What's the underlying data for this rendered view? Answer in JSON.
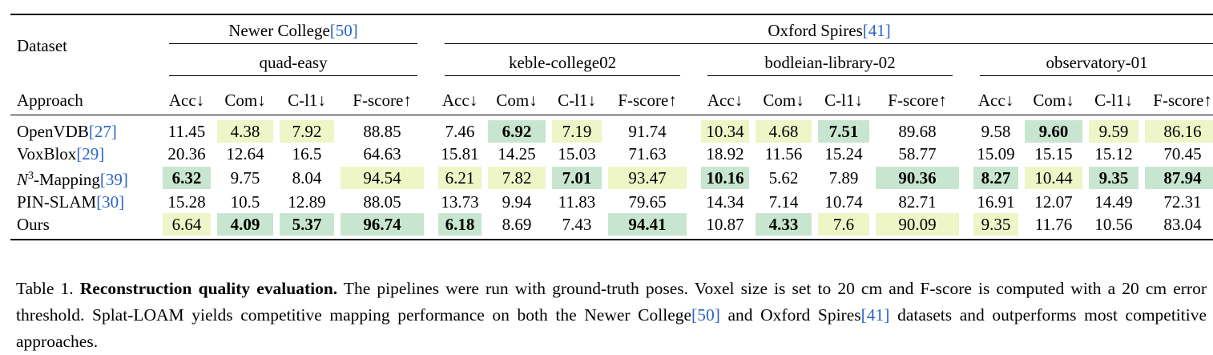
{
  "headers": {
    "dataset_label": "Dataset",
    "approach_label": "Approach",
    "groups": [
      {
        "name": "Newer College",
        "ref": "[50]"
      },
      {
        "name": "Oxford Spires",
        "ref": "[41]"
      }
    ],
    "sequences": [
      "quad-easy",
      "keble-college02",
      "bodleian-library-02",
      "observatory-01"
    ],
    "metrics": [
      "Acc↓",
      "Com↓",
      "C-l1↓",
      "F-score↑"
    ]
  },
  "rows": [
    {
      "name": "OpenVDB",
      "ref": "[27]",
      "cells": [
        {
          "v": "11.45",
          "h": ""
        },
        {
          "v": "4.38",
          "h": "third"
        },
        {
          "v": "7.92",
          "h": "third"
        },
        {
          "v": "88.85",
          "h": ""
        },
        {
          "v": "7.46",
          "h": ""
        },
        {
          "v": "6.92",
          "h": "best"
        },
        {
          "v": "7.19",
          "h": "third"
        },
        {
          "v": "91.74",
          "h": ""
        },
        {
          "v": "10.34",
          "h": "third"
        },
        {
          "v": "4.68",
          "h": "third"
        },
        {
          "v": "7.51",
          "h": "best"
        },
        {
          "v": "89.68",
          "h": ""
        },
        {
          "v": "9.58",
          "h": ""
        },
        {
          "v": "9.60",
          "h": "best"
        },
        {
          "v": "9.59",
          "h": "third"
        },
        {
          "v": "86.16",
          "h": "third"
        }
      ]
    },
    {
      "name": "VoxBlox",
      "ref": "[29]",
      "cells": [
        {
          "v": "20.36",
          "h": ""
        },
        {
          "v": "12.64",
          "h": ""
        },
        {
          "v": "16.5",
          "h": ""
        },
        {
          "v": "64.63",
          "h": ""
        },
        {
          "v": "15.81",
          "h": ""
        },
        {
          "v": "14.25",
          "h": ""
        },
        {
          "v": "15.03",
          "h": ""
        },
        {
          "v": "71.63",
          "h": ""
        },
        {
          "v": "18.92",
          "h": ""
        },
        {
          "v": "11.56",
          "h": ""
        },
        {
          "v": "15.24",
          "h": ""
        },
        {
          "v": "58.77",
          "h": ""
        },
        {
          "v": "15.09",
          "h": ""
        },
        {
          "v": "15.15",
          "h": ""
        },
        {
          "v": "15.12",
          "h": ""
        },
        {
          "v": "70.45",
          "h": ""
        }
      ]
    },
    {
      "name": "-Mapping",
      "prefix": "N",
      "sup": "3",
      "ref": "[39]",
      "cells": [
        {
          "v": "6.32",
          "h": "best"
        },
        {
          "v": "9.75",
          "h": ""
        },
        {
          "v": "8.04",
          "h": ""
        },
        {
          "v": "94.54",
          "h": "third"
        },
        {
          "v": "6.21",
          "h": "third"
        },
        {
          "v": "7.82",
          "h": "third"
        },
        {
          "v": "7.01",
          "h": "best"
        },
        {
          "v": "93.47",
          "h": "third"
        },
        {
          "v": "10.16",
          "h": "best"
        },
        {
          "v": "5.62",
          "h": ""
        },
        {
          "v": "7.89",
          "h": ""
        },
        {
          "v": "90.36",
          "h": "best"
        },
        {
          "v": "8.27",
          "h": "best"
        },
        {
          "v": "10.44",
          "h": "third"
        },
        {
          "v": "9.35",
          "h": "best"
        },
        {
          "v": "87.94",
          "h": "best"
        }
      ]
    },
    {
      "name": "PIN-SLAM",
      "ref": "[30]",
      "cells": [
        {
          "v": "15.28",
          "h": ""
        },
        {
          "v": "10.5",
          "h": ""
        },
        {
          "v": "12.89",
          "h": ""
        },
        {
          "v": "88.05",
          "h": ""
        },
        {
          "v": "13.73",
          "h": ""
        },
        {
          "v": "9.94",
          "h": ""
        },
        {
          "v": "11.83",
          "h": ""
        },
        {
          "v": "79.65",
          "h": ""
        },
        {
          "v": "14.34",
          "h": ""
        },
        {
          "v": "7.14",
          "h": ""
        },
        {
          "v": "10.74",
          "h": ""
        },
        {
          "v": "82.71",
          "h": ""
        },
        {
          "v": "16.91",
          "h": ""
        },
        {
          "v": "12.07",
          "h": ""
        },
        {
          "v": "14.49",
          "h": ""
        },
        {
          "v": "72.31",
          "h": ""
        }
      ]
    },
    {
      "name": "Ours",
      "ref": "",
      "cells": [
        {
          "v": "6.64",
          "h": "third"
        },
        {
          "v": "4.09",
          "h": "best"
        },
        {
          "v": "5.37",
          "h": "best"
        },
        {
          "v": "96.74",
          "h": "best"
        },
        {
          "v": "6.18",
          "h": "best"
        },
        {
          "v": "8.69",
          "h": ""
        },
        {
          "v": "7.43",
          "h": ""
        },
        {
          "v": "94.41",
          "h": "best"
        },
        {
          "v": "10.87",
          "h": ""
        },
        {
          "v": "4.33",
          "h": "best"
        },
        {
          "v": "7.6",
          "h": "third"
        },
        {
          "v": "90.09",
          "h": "third"
        },
        {
          "v": "9.35",
          "h": "third"
        },
        {
          "v": "11.76",
          "h": ""
        },
        {
          "v": "10.56",
          "h": ""
        },
        {
          "v": "83.04",
          "h": ""
        }
      ]
    }
  ],
  "caption": {
    "label": "Table 1.",
    "lead": "Reconstruction quality evaluation.",
    "text1": "The pipelines were run with ground-truth poses. Voxel size is set to 20 cm and F-score is computed with a 20 cm error threshold. Splat-LOAM yields competitive mapping performance on both the Newer College",
    "ref1": "[50]",
    "text2": "and Oxford Spires",
    "ref2": "[41]",
    "text3": "datasets and outperforms most competitive approaches."
  },
  "colors": {
    "best": "#c8e6cf",
    "second": "#dff0c8",
    "third": "#eef5c6",
    "ref": "#2a64c8"
  }
}
